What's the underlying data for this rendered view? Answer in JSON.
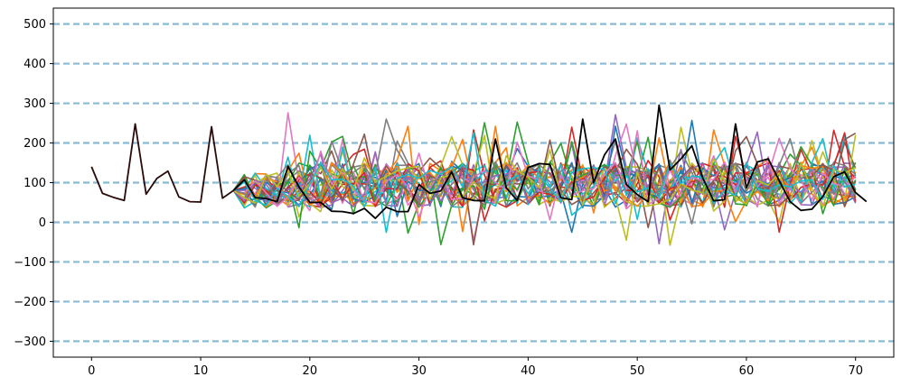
{
  "chart_data": {
    "type": "line",
    "title": "",
    "xlabel": "",
    "ylabel": "",
    "xlim": [
      -3.5,
      73.5
    ],
    "ylim": [
      -340,
      540
    ],
    "x_ticks": [
      "0",
      "10",
      "20",
      "30",
      "40",
      "50",
      "60",
      "70"
    ],
    "y_ticks": [
      "−300",
      "−200",
      "−100",
      "0",
      "100",
      "200",
      "300",
      "400",
      "500"
    ],
    "grid": {
      "axis": "y",
      "style": "dashed",
      "color": "#88bbd6",
      "values": [
        -300,
        -200,
        -100,
        0,
        100,
        200,
        300,
        400,
        500
      ]
    },
    "history": {
      "x_start": 0,
      "values": [
        140,
        73,
        63,
        55,
        248,
        71,
        111,
        129,
        64,
        52,
        51,
        241,
        61,
        80
      ]
    },
    "ensemble": {
      "x_start": 13,
      "x_end": 70,
      "count": 30,
      "colors": [
        "#1f77b4",
        "#ff7f0e",
        "#2ca02c",
        "#d62728",
        "#9467bd",
        "#8c564b",
        "#e377c2",
        "#7f7f7f",
        "#bcbd22",
        "#17becf"
      ],
      "notable_peaks": [
        {
          "x": 18,
          "y": 276
        },
        {
          "x": 25,
          "y": 222
        },
        {
          "x": 52,
          "y": -54
        },
        {
          "x": 67,
          "y": 211
        }
      ]
    },
    "series": [
      {
        "color": "#000000",
        "x_start": 13,
        "values": [
          80,
          107,
          62,
          60,
          52,
          141,
          89,
          50,
          50,
          28,
          27,
          22,
          35,
          10,
          38,
          27,
          27,
          95,
          73,
          79,
          127,
          62,
          55,
          54,
          210,
          87,
          55,
          138,
          148,
          146,
          62,
          57,
          260,
          100,
          170,
          210,
          95,
          70,
          52,
          295,
          132,
          160,
          193,
          112,
          54,
          57,
          248,
          87,
          152,
          160,
          105,
          52,
          30,
          33,
          65,
          115,
          127,
          75,
          52
        ]
      }
    ]
  }
}
